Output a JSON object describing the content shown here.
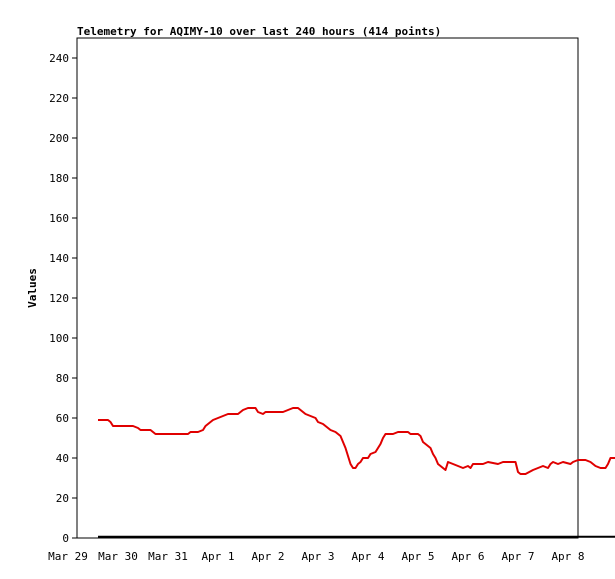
{
  "chart_data": {
    "type": "line",
    "title": "Telemetry for AQIMY-10 over last 240 hours (414 points)",
    "ylabel": "Values",
    "xlabel": "",
    "ylim": [
      0,
      250
    ],
    "yticks": [
      0,
      20,
      40,
      60,
      80,
      100,
      120,
      140,
      160,
      180,
      200,
      220,
      240
    ],
    "xtick_labels": [
      "Mar 29",
      "Mar 30",
      "Mar 31",
      "Apr 1",
      "Apr 2",
      "Apr 3",
      "Apr 4",
      "Apr 5",
      "Apr 6",
      "Apr 7",
      "Apr 8"
    ],
    "xlim_days": [
      0,
      10
    ],
    "grid": false,
    "series": [
      {
        "color": "#e00000",
        "points": [
          [
            0.6,
            59
          ],
          [
            0.8,
            59
          ],
          [
            0.85,
            58
          ],
          [
            0.9,
            56
          ],
          [
            1.3,
            56
          ],
          [
            1.4,
            55
          ],
          [
            1.45,
            54
          ],
          [
            1.65,
            54
          ],
          [
            1.7,
            53
          ],
          [
            1.75,
            52
          ],
          [
            2.4,
            52
          ],
          [
            2.45,
            53
          ],
          [
            2.6,
            53
          ],
          [
            2.7,
            54
          ],
          [
            2.75,
            56
          ],
          [
            2.8,
            57
          ],
          [
            2.9,
            59
          ],
          [
            3.0,
            60
          ],
          [
            3.1,
            61
          ],
          [
            3.2,
            62
          ],
          [
            3.4,
            62
          ],
          [
            3.5,
            64
          ],
          [
            3.6,
            65
          ],
          [
            3.75,
            65
          ],
          [
            3.8,
            63
          ],
          [
            3.9,
            62
          ],
          [
            3.95,
            63
          ],
          [
            4.3,
            63
          ],
          [
            4.4,
            64
          ],
          [
            4.5,
            65
          ],
          [
            4.6,
            65
          ],
          [
            4.65,
            64
          ],
          [
            4.75,
            62
          ],
          [
            4.85,
            61
          ],
          [
            4.95,
            60
          ],
          [
            5.0,
            58
          ],
          [
            5.1,
            57
          ],
          [
            5.2,
            55
          ],
          [
            5.25,
            54
          ],
          [
            5.35,
            53
          ],
          [
            5.45,
            51
          ],
          [
            5.5,
            48
          ],
          [
            5.55,
            45
          ],
          [
            5.6,
            41
          ],
          [
            5.65,
            37
          ],
          [
            5.7,
            35
          ],
          [
            5.75,
            35
          ],
          [
            5.8,
            37
          ],
          [
            5.85,
            38
          ],
          [
            5.9,
            40
          ],
          [
            6.0,
            40
          ],
          [
            6.05,
            42
          ],
          [
            6.15,
            43
          ],
          [
            6.2,
            45
          ],
          [
            6.25,
            47
          ],
          [
            6.3,
            50
          ],
          [
            6.35,
            52
          ],
          [
            6.5,
            52
          ],
          [
            6.6,
            53
          ],
          [
            6.8,
            53
          ],
          [
            6.85,
            52
          ],
          [
            6.9,
            52
          ],
          [
            7.0,
            52
          ],
          [
            7.05,
            51
          ],
          [
            7.1,
            48
          ],
          [
            7.15,
            47
          ],
          [
            7.25,
            45
          ],
          [
            7.3,
            42
          ],
          [
            7.35,
            40
          ],
          [
            7.4,
            37
          ],
          [
            7.45,
            36
          ],
          [
            7.5,
            35
          ],
          [
            7.55,
            34
          ],
          [
            7.6,
            38
          ],
          [
            7.7,
            37
          ],
          [
            7.8,
            36
          ],
          [
            7.9,
            35
          ],
          [
            8.0,
            36
          ],
          [
            8.05,
            35
          ],
          [
            8.1,
            37
          ],
          [
            8.3,
            37
          ],
          [
            8.4,
            38
          ],
          [
            8.6,
            37
          ],
          [
            8.7,
            38
          ],
          [
            8.95,
            38
          ],
          [
            9.0,
            33
          ],
          [
            9.05,
            32
          ],
          [
            9.15,
            32
          ],
          [
            9.3,
            34
          ],
          [
            9.4,
            35
          ],
          [
            9.5,
            36
          ],
          [
            9.6,
            35
          ],
          [
            9.65,
            37
          ],
          [
            9.7,
            38
          ],
          [
            9.8,
            37
          ],
          [
            9.9,
            38
          ],
          [
            10.05,
            37
          ],
          [
            10.1,
            38
          ],
          [
            10.2,
            39
          ],
          [
            10.35,
            39
          ],
          [
            10.45,
            38
          ],
          [
            10.55,
            36
          ],
          [
            10.65,
            35
          ],
          [
            10.75,
            35
          ],
          [
            10.8,
            37
          ],
          [
            10.85,
            40
          ],
          [
            10.95,
            40
          ],
          [
            11.0,
            42
          ],
          [
            11.05,
            44
          ],
          [
            11.1,
            44
          ]
        ]
      },
      {
        "color": "#000000",
        "points": [
          [
            0.6,
            0.6
          ],
          [
            11.15,
            0.6
          ]
        ]
      }
    ]
  }
}
